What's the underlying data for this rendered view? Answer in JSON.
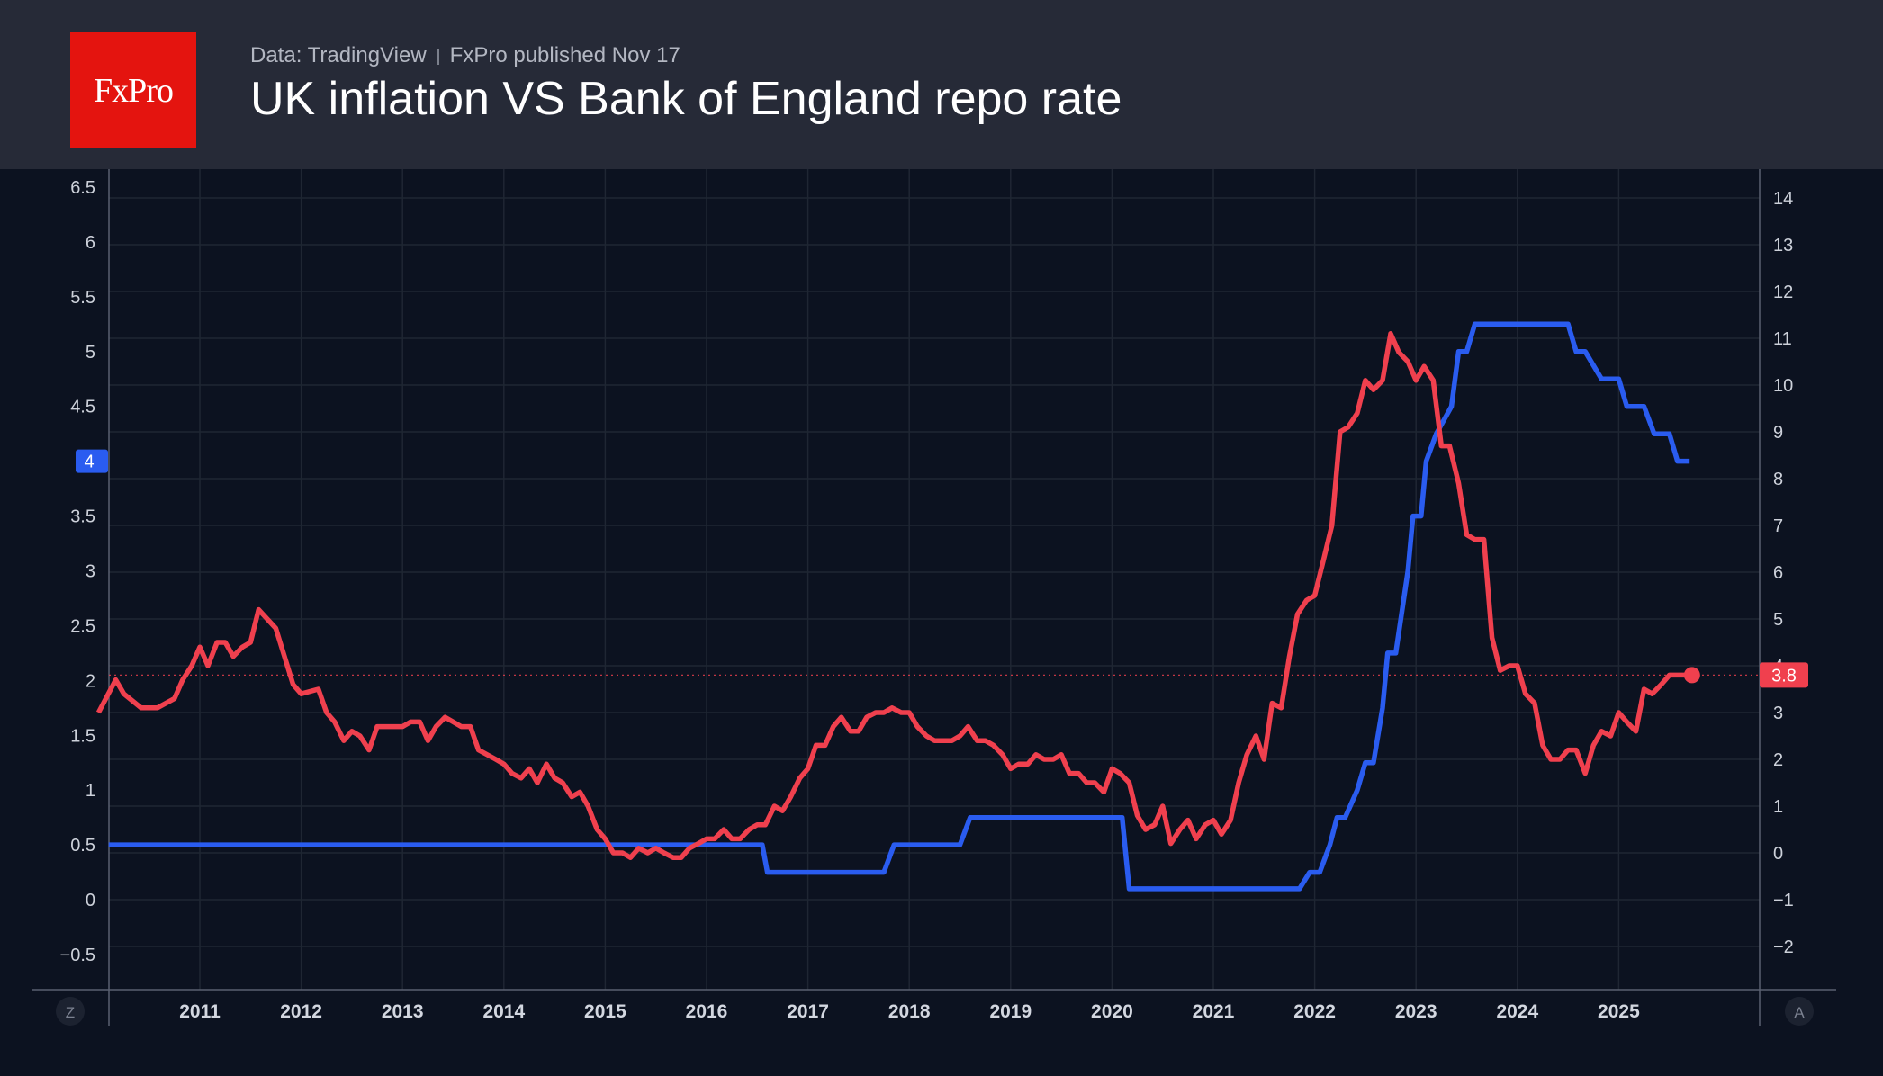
{
  "header": {
    "logo": "FxPro",
    "source": "Data: TradingView",
    "published": "FxPro published Nov 17",
    "title": "UK inflation VS Bank of England repo rate"
  },
  "colors": {
    "background": "#0c1220",
    "header": "#262a37",
    "inflation": "#f0404e",
    "repo_rate": "#2a5cf0",
    "grid": "#1f2633"
  },
  "corner_buttons": {
    "left": "Z",
    "right": "A"
  },
  "chart_data": {
    "type": "line",
    "x_axis": {
      "ticks": [
        "2011",
        "2012",
        "2013",
        "2014",
        "2015",
        "2016",
        "2017",
        "2018",
        "2019",
        "2020",
        "2021",
        "2022",
        "2023",
        "2024",
        "2025"
      ]
    },
    "left_axis": {
      "ticks": [
        "6.5",
        "6",
        "5.5",
        "5",
        "4.5",
        "4",
        "3.5",
        "3",
        "2.5",
        "2",
        "1.5",
        "1",
        "0.5",
        "0",
        "−0.5"
      ],
      "range": [
        -0.5,
        6.5
      ],
      "badge": "4"
    },
    "right_axis": {
      "ticks": [
        "14",
        "13",
        "12",
        "11",
        "10",
        "9",
        "8",
        "7",
        "6",
        "5",
        "4",
        "3",
        "2",
        "1",
        "0",
        "−1",
        "−2"
      ],
      "range": [
        -2,
        14
      ],
      "badge": "3.8"
    },
    "series": [
      {
        "axis": "left",
        "points": [
          [
            2010.1,
            0.5
          ],
          [
            2016.55,
            0.5
          ],
          [
            2016.6,
            0.25
          ],
          [
            2017.75,
            0.25
          ],
          [
            2017.85,
            0.5
          ],
          [
            2018.5,
            0.5
          ],
          [
            2018.6,
            0.75
          ],
          [
            2020.1,
            0.75
          ],
          [
            2020.17,
            0.1
          ],
          [
            2021.85,
            0.1
          ],
          [
            2021.95,
            0.25
          ],
          [
            2022.05,
            0.25
          ],
          [
            2022.15,
            0.5
          ],
          [
            2022.22,
            0.75
          ],
          [
            2022.3,
            0.75
          ],
          [
            2022.42,
            1.0
          ],
          [
            2022.5,
            1.25
          ],
          [
            2022.58,
            1.25
          ],
          [
            2022.67,
            1.75
          ],
          [
            2022.72,
            2.25
          ],
          [
            2022.8,
            2.25
          ],
          [
            2022.92,
            3.0
          ],
          [
            2022.97,
            3.5
          ],
          [
            2023.05,
            3.5
          ],
          [
            2023.1,
            4.0
          ],
          [
            2023.2,
            4.25
          ],
          [
            2023.35,
            4.5
          ],
          [
            2023.42,
            5.0
          ],
          [
            2023.5,
            5.0
          ],
          [
            2023.58,
            5.25
          ],
          [
            2024.5,
            5.25
          ],
          [
            2024.58,
            5.0
          ],
          [
            2024.67,
            5.0
          ],
          [
            2024.83,
            4.75
          ],
          [
            2025.0,
            4.75
          ],
          [
            2025.08,
            4.5
          ],
          [
            2025.25,
            4.5
          ],
          [
            2025.35,
            4.25
          ],
          [
            2025.5,
            4.25
          ],
          [
            2025.58,
            4.0
          ],
          [
            2025.7,
            4.0
          ]
        ]
      },
      {
        "axis": "right",
        "points": [
          [
            2010.0,
            3.0
          ],
          [
            2010.17,
            3.7
          ],
          [
            2010.25,
            3.4
          ],
          [
            2010.42,
            3.1
          ],
          [
            2010.58,
            3.1
          ],
          [
            2010.75,
            3.3
          ],
          [
            2010.83,
            3.7
          ],
          [
            2010.92,
            4.0
          ],
          [
            2011.0,
            4.4
          ],
          [
            2011.08,
            4.0
          ],
          [
            2011.17,
            4.5
          ],
          [
            2011.25,
            4.5
          ],
          [
            2011.33,
            4.2
          ],
          [
            2011.42,
            4.4
          ],
          [
            2011.5,
            4.5
          ],
          [
            2011.58,
            5.2
          ],
          [
            2011.75,
            4.8
          ],
          [
            2011.92,
            3.6
          ],
          [
            2012.0,
            3.4
          ],
          [
            2012.17,
            3.5
          ],
          [
            2012.25,
            3.0
          ],
          [
            2012.33,
            2.8
          ],
          [
            2012.42,
            2.4
          ],
          [
            2012.5,
            2.6
          ],
          [
            2012.58,
            2.5
          ],
          [
            2012.67,
            2.2
          ],
          [
            2012.75,
            2.7
          ],
          [
            2012.92,
            2.7
          ],
          [
            2013.0,
            2.7
          ],
          [
            2013.08,
            2.8
          ],
          [
            2013.17,
            2.8
          ],
          [
            2013.25,
            2.4
          ],
          [
            2013.33,
            2.7
          ],
          [
            2013.42,
            2.9
          ],
          [
            2013.5,
            2.8
          ],
          [
            2013.58,
            2.7
          ],
          [
            2013.67,
            2.7
          ],
          [
            2013.75,
            2.2
          ],
          [
            2013.92,
            2.0
          ],
          [
            2014.0,
            1.9
          ],
          [
            2014.08,
            1.7
          ],
          [
            2014.17,
            1.6
          ],
          [
            2014.25,
            1.8
          ],
          [
            2014.33,
            1.5
          ],
          [
            2014.42,
            1.9
          ],
          [
            2014.5,
            1.6
          ],
          [
            2014.58,
            1.5
          ],
          [
            2014.67,
            1.2
          ],
          [
            2014.75,
            1.3
          ],
          [
            2014.83,
            1.0
          ],
          [
            2014.92,
            0.5
          ],
          [
            2015.0,
            0.3
          ],
          [
            2015.08,
            0.0
          ],
          [
            2015.17,
            0.0
          ],
          [
            2015.25,
            -0.1
          ],
          [
            2015.33,
            0.1
          ],
          [
            2015.42,
            0.0
          ],
          [
            2015.5,
            0.1
          ],
          [
            2015.58,
            0.0
          ],
          [
            2015.67,
            -0.1
          ],
          [
            2015.75,
            -0.1
          ],
          [
            2015.83,
            0.1
          ],
          [
            2015.92,
            0.2
          ],
          [
            2016.0,
            0.3
          ],
          [
            2016.08,
            0.3
          ],
          [
            2016.17,
            0.5
          ],
          [
            2016.25,
            0.3
          ],
          [
            2016.33,
            0.3
          ],
          [
            2016.42,
            0.5
          ],
          [
            2016.5,
            0.6
          ],
          [
            2016.58,
            0.6
          ],
          [
            2016.67,
            1.0
          ],
          [
            2016.75,
            0.9
          ],
          [
            2016.83,
            1.2
          ],
          [
            2016.92,
            1.6
          ],
          [
            2017.0,
            1.8
          ],
          [
            2017.08,
            2.3
          ],
          [
            2017.17,
            2.3
          ],
          [
            2017.25,
            2.7
          ],
          [
            2017.33,
            2.9
          ],
          [
            2017.42,
            2.6
          ],
          [
            2017.5,
            2.6
          ],
          [
            2017.58,
            2.9
          ],
          [
            2017.67,
            3.0
          ],
          [
            2017.75,
            3.0
          ],
          [
            2017.83,
            3.1
          ],
          [
            2017.92,
            3.0
          ],
          [
            2018.0,
            3.0
          ],
          [
            2018.08,
            2.7
          ],
          [
            2018.17,
            2.5
          ],
          [
            2018.25,
            2.4
          ],
          [
            2018.33,
            2.4
          ],
          [
            2018.42,
            2.4
          ],
          [
            2018.5,
            2.5
          ],
          [
            2018.58,
            2.7
          ],
          [
            2018.67,
            2.4
          ],
          [
            2018.75,
            2.4
          ],
          [
            2018.83,
            2.3
          ],
          [
            2018.92,
            2.1
          ],
          [
            2019.0,
            1.8
          ],
          [
            2019.08,
            1.9
          ],
          [
            2019.17,
            1.9
          ],
          [
            2019.25,
            2.1
          ],
          [
            2019.33,
            2.0
          ],
          [
            2019.42,
            2.0
          ],
          [
            2019.5,
            2.1
          ],
          [
            2019.58,
            1.7
          ],
          [
            2019.67,
            1.7
          ],
          [
            2019.75,
            1.5
          ],
          [
            2019.83,
            1.5
          ],
          [
            2019.92,
            1.3
          ],
          [
            2020.0,
            1.8
          ],
          [
            2020.08,
            1.7
          ],
          [
            2020.17,
            1.5
          ],
          [
            2020.25,
            0.8
          ],
          [
            2020.33,
            0.5
          ],
          [
            2020.42,
            0.6
          ],
          [
            2020.5,
            1.0
          ],
          [
            2020.58,
            0.2
          ],
          [
            2020.67,
            0.5
          ],
          [
            2020.75,
            0.7
          ],
          [
            2020.83,
            0.3
          ],
          [
            2020.92,
            0.6
          ],
          [
            2021.0,
            0.7
          ],
          [
            2021.08,
            0.4
          ],
          [
            2021.17,
            0.7
          ],
          [
            2021.25,
            1.5
          ],
          [
            2021.33,
            2.1
          ],
          [
            2021.42,
            2.5
          ],
          [
            2021.5,
            2.0
          ],
          [
            2021.58,
            3.2
          ],
          [
            2021.67,
            3.1
          ],
          [
            2021.75,
            4.2
          ],
          [
            2021.83,
            5.1
          ],
          [
            2021.92,
            5.4
          ],
          [
            2022.0,
            5.5
          ],
          [
            2022.08,
            6.2
          ],
          [
            2022.17,
            7.0
          ],
          [
            2022.25,
            9.0
          ],
          [
            2022.33,
            9.1
          ],
          [
            2022.42,
            9.4
          ],
          [
            2022.5,
            10.1
          ],
          [
            2022.58,
            9.9
          ],
          [
            2022.67,
            10.1
          ],
          [
            2022.75,
            11.1
          ],
          [
            2022.83,
            10.7
          ],
          [
            2022.92,
            10.5
          ],
          [
            2023.0,
            10.1
          ],
          [
            2023.08,
            10.4
          ],
          [
            2023.17,
            10.1
          ],
          [
            2023.25,
            8.7
          ],
          [
            2023.33,
            8.7
          ],
          [
            2023.42,
            7.9
          ],
          [
            2023.5,
            6.8
          ],
          [
            2023.58,
            6.7
          ],
          [
            2023.67,
            6.7
          ],
          [
            2023.75,
            4.6
          ],
          [
            2023.83,
            3.9
          ],
          [
            2023.92,
            4.0
          ],
          [
            2024.0,
            4.0
          ],
          [
            2024.08,
            3.4
          ],
          [
            2024.17,
            3.2
          ],
          [
            2024.25,
            2.3
          ],
          [
            2024.33,
            2.0
          ],
          [
            2024.42,
            2.0
          ],
          [
            2024.5,
            2.2
          ],
          [
            2024.58,
            2.2
          ],
          [
            2024.67,
            1.7
          ],
          [
            2024.75,
            2.3
          ],
          [
            2024.83,
            2.6
          ],
          [
            2024.92,
            2.5
          ],
          [
            2025.0,
            3.0
          ],
          [
            2025.08,
            2.8
          ],
          [
            2025.17,
            2.6
          ],
          [
            2025.25,
            3.5
          ],
          [
            2025.33,
            3.4
          ],
          [
            2025.42,
            3.6
          ],
          [
            2025.5,
            3.8
          ],
          [
            2025.58,
            3.8
          ],
          [
            2025.67,
            3.8
          ]
        ]
      }
    ]
  }
}
